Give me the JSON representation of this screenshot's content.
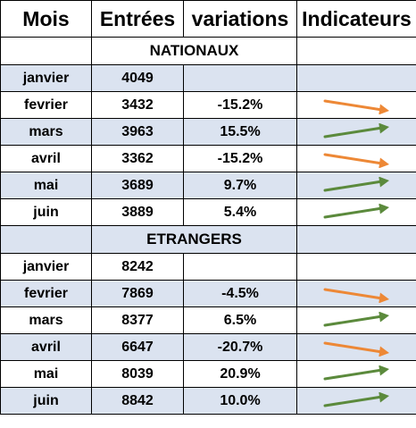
{
  "headers": {
    "mois": "Mois",
    "entrees": "Entrées",
    "variations": "variations",
    "indicateurs": "Indicateurs"
  },
  "sections": [
    {
      "title": "NATIONAUX",
      "rows": [
        {
          "mois": "janvier",
          "entrees": "4049",
          "variation": "",
          "indicator": "none"
        },
        {
          "mois": "fevrier",
          "entrees": "3432",
          "variation": "-15.2%",
          "indicator": "down"
        },
        {
          "mois": "mars",
          "entrees": "3963",
          "variation": "15.5%",
          "indicator": "up"
        },
        {
          "mois": "avril",
          "entrees": "3362",
          "variation": "-15.2%",
          "indicator": "down"
        },
        {
          "mois": "mai",
          "entrees": "3689",
          "variation": "9.7%",
          "indicator": "up"
        },
        {
          "mois": "juin",
          "entrees": "3889",
          "variation": "5.4%",
          "indicator": "up"
        }
      ]
    },
    {
      "title": "ETRANGERS",
      "rows": [
        {
          "mois": "janvier",
          "entrees": "8242",
          "variation": "",
          "indicator": "none"
        },
        {
          "mois": "fevrier",
          "entrees": "7869",
          "variation": "-4.5%",
          "indicator": "down"
        },
        {
          "mois": "mars",
          "entrees": "8377",
          "variation": "6.5%",
          "indicator": "up"
        },
        {
          "mois": "avril",
          "entrees": "6647",
          "variation": "-20.7%",
          "indicator": "down"
        },
        {
          "mois": "mai",
          "entrees": "8039",
          "variation": "20.9%",
          "indicator": "up"
        },
        {
          "mois": "juin",
          "entrees": "8842",
          "variation": "10.0%",
          "indicator": "up"
        }
      ]
    }
  ],
  "colors": {
    "up_arrow": "#5b8a3c",
    "down_arrow": "#ed8836",
    "row_shade": "#dbe3f0"
  }
}
